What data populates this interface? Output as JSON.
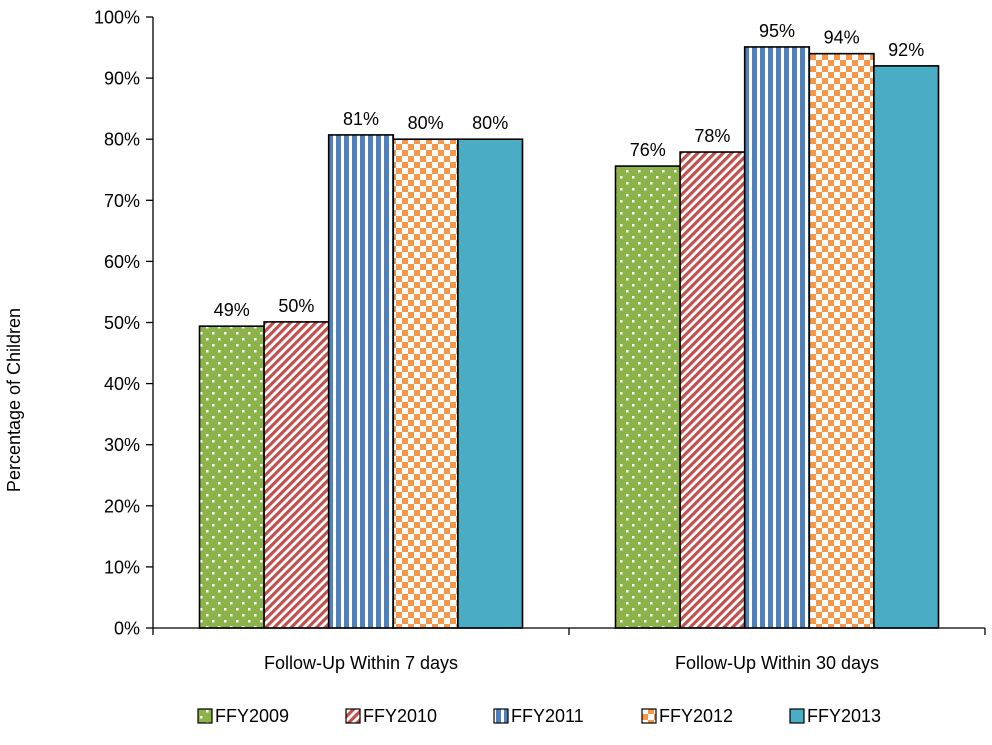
{
  "chart_data": {
    "type": "bar",
    "title": "",
    "xlabel": "",
    "ylabel": "Percentage of Children",
    "categories": [
      "Follow-Up Within 7 days",
      "Follow-Up Within 30 days"
    ],
    "series": [
      {
        "name": "FFY2009",
        "values": [
          49.4,
          75.6
        ],
        "labels": [
          "49%",
          "76%"
        ],
        "color": "#8cb34a",
        "pattern": "dots"
      },
      {
        "name": "FFY2010",
        "values": [
          50.1,
          77.9
        ],
        "labels": [
          "50%",
          "78%"
        ],
        "color": "#c0504d",
        "pattern": "diagonal-stripes"
      },
      {
        "name": "FFY2011",
        "values": [
          80.7,
          95.1
        ],
        "labels": [
          "81%",
          "95%"
        ],
        "color": "#4f81bd",
        "pattern": "vertical-stripes"
      },
      {
        "name": "FFY2012",
        "values": [
          80.0,
          94.0
        ],
        "labels": [
          "80%",
          "94%"
        ],
        "color": "#f79646",
        "pattern": "checkerboard"
      },
      {
        "name": "FFY2013",
        "values": [
          80.0,
          92.0
        ],
        "labels": [
          "80%",
          "92%"
        ],
        "color": "#4bacc6",
        "pattern": "solid"
      }
    ],
    "ylim": [
      0,
      100
    ],
    "yticks": [
      "0%",
      "10%",
      "20%",
      "30%",
      "40%",
      "50%",
      "60%",
      "70%",
      "80%",
      "90%",
      "100%"
    ],
    "grid": false,
    "legend": "bottom"
  }
}
